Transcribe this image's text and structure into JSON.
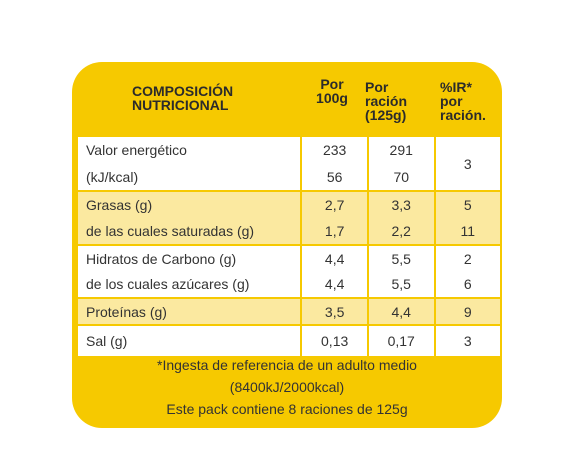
{
  "header": {
    "columns": [
      [
        "COMPOSICIÓN",
        "NUTRICIONAL"
      ],
      [
        "Por",
        "100g"
      ],
      [
        "Por",
        "ración",
        "(125g)"
      ],
      [
        "%IR*",
        "por",
        "ración."
      ]
    ]
  },
  "table": {
    "rows": [
      [
        [
          "Valor energético",
          "(kJ/kcal)"
        ],
        [
          "233",
          "56"
        ],
        [
          "291",
          "70"
        ],
        [
          "3"
        ]
      ],
      [
        [
          "Grasas (g)",
          "de las cuales saturadas (g)"
        ],
        [
          "2,7",
          "1,7"
        ],
        [
          "3,3",
          "2,2"
        ],
        [
          "5",
          "11"
        ]
      ],
      [
        [
          "Hidratos de Carbono (g)",
          "de los cuales azúcares (g)"
        ],
        [
          "4,4",
          "4,4"
        ],
        [
          "5,5",
          "5,5"
        ],
        [
          "2",
          "6"
        ]
      ],
      [
        [
          "Proteínas (g)"
        ],
        [
          "3,5"
        ],
        [
          "4,4"
        ],
        [
          "9"
        ]
      ],
      [
        [
          "Sal (g)"
        ],
        [
          "0,13"
        ],
        [
          "0,17"
        ],
        [
          "3"
        ]
      ]
    ]
  },
  "footer": {
    "lines": [
      "*Ingesta de referencia de un adulto medio",
      "(8400kJ/2000kcal)",
      "Este pack contiene 8 raciones de 125g"
    ]
  }
}
